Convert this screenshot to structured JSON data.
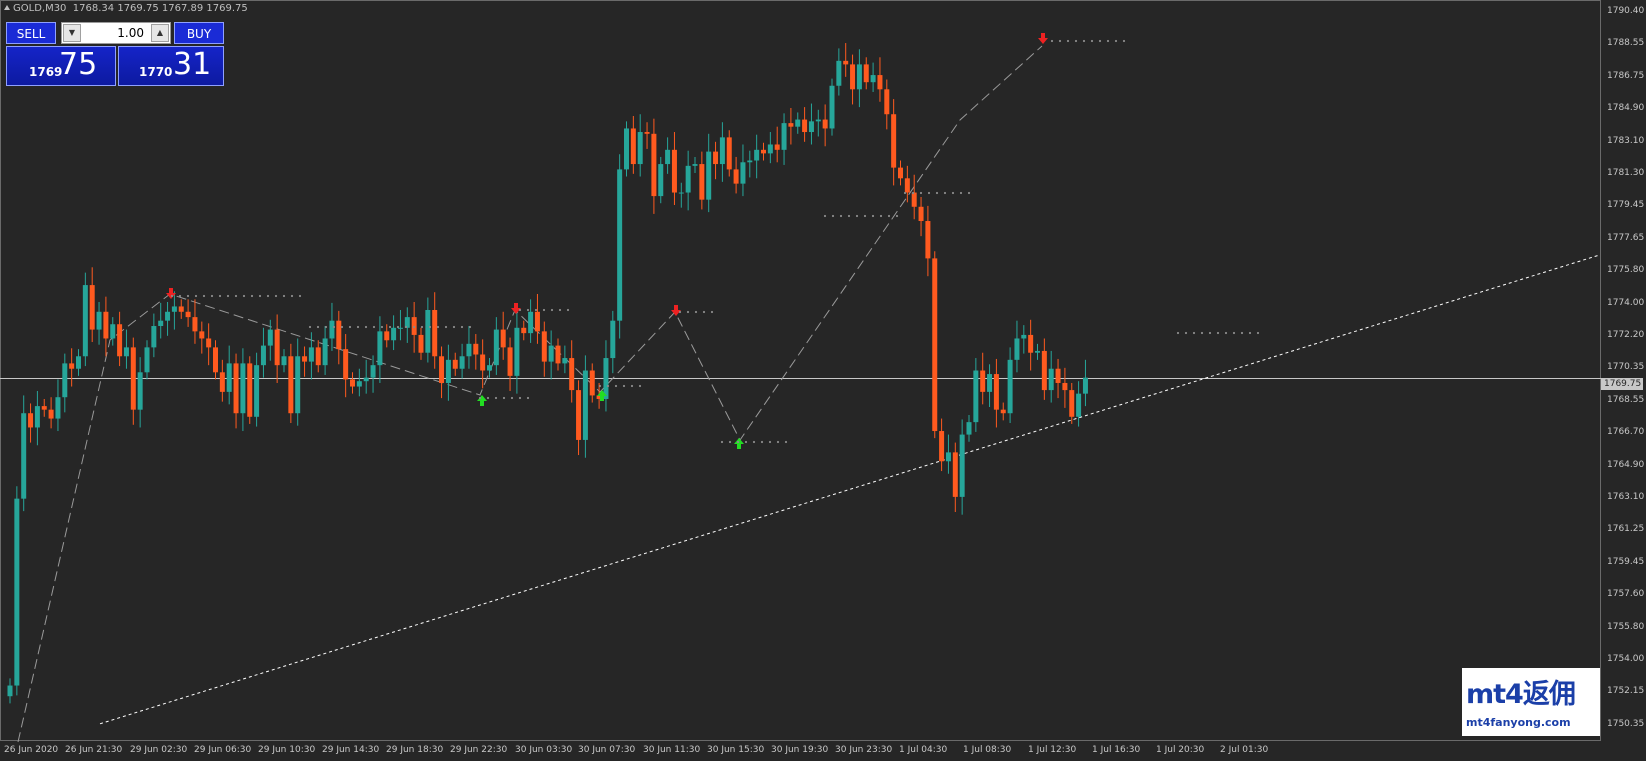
{
  "header": {
    "symbol_timeframe": "GOLD,M30",
    "ohlc": "1768.34 1769.75 1767.89 1769.75"
  },
  "trade_panel": {
    "sell_label": "SELL",
    "buy_label": "BUY",
    "lot_value": "1.00",
    "sell_price_prefix": "1769",
    "sell_price_big": "75",
    "buy_price_prefix": "1770",
    "buy_price_big": "31"
  },
  "price_axis": [
    "1790.40",
    "1788.55",
    "1786.75",
    "1784.90",
    "1783.10",
    "1781.30",
    "1779.45",
    "1777.65",
    "1775.80",
    "1774.00",
    "1772.20",
    "1770.35",
    "1768.55",
    "1766.70",
    "1764.90",
    "1763.10",
    "1761.25",
    "1759.45",
    "1757.60",
    "1755.80",
    "1754.00",
    "1752.15",
    "1750.35"
  ],
  "current_price": "1769.75",
  "time_axis": [
    "26 Jun 2020",
    "26 Jun 21:30",
    "29 Jun 02:30",
    "29 Jun 06:30",
    "29 Jun 10:30",
    "29 Jun 14:30",
    "29 Jun 18:30",
    "29 Jun 22:30",
    "30 Jun 03:30",
    "30 Jun 07:30",
    "30 Jun 11:30",
    "30 Jun 15:30",
    "30 Jun 19:30",
    "30 Jun 23:30",
    "1 Jul 04:30",
    "1 Jul 08:30",
    "1 Jul 12:30",
    "1 Jul 16:30",
    "1 Jul 20:30",
    "2 Jul 01:30"
  ],
  "logo": {
    "main": "mt4返佣",
    "sub": "mt4fanyong.com"
  },
  "colors": {
    "bull": "#26a69a",
    "bear": "#ff5a1f",
    "background": "#262626",
    "signal_up": "#22dd22",
    "signal_down": "#ee2222"
  },
  "chart_data": {
    "type": "candlestick",
    "symbol": "GOLD",
    "timeframe": "M30",
    "ylim": [
      1750.35,
      1790.4
    ],
    "current_price": 1769.75,
    "closes": [
      1752.5,
      1763.0,
      1767.8,
      1767.0,
      1768.2,
      1768.0,
      1767.5,
      1768.7,
      1770.6,
      1770.3,
      1771.0,
      1775.0,
      1772.5,
      1773.5,
      1772.0,
      1772.8,
      1771.0,
      1771.5,
      1768.0,
      1770.1,
      1771.5,
      1772.7,
      1773.0,
      1773.5,
      1773.8,
      1773.5,
      1773.2,
      1772.4,
      1772.0,
      1771.5,
      1770.1,
      1769.0,
      1770.6,
      1767.8,
      1770.6,
      1767.6,
      1770.5,
      1771.6,
      1772.5,
      1770.5,
      1771.0,
      1767.8,
      1771.0,
      1770.7,
      1771.5,
      1770.5,
      1772.0,
      1773.0,
      1771.4,
      1769.7,
      1769.3,
      1769.6,
      1769.8,
      1770.5,
      1772.4,
      1771.9,
      1772.6,
      1772.6,
      1773.2,
      1772.2,
      1771.2,
      1773.6,
      1771.0,
      1769.5,
      1770.8,
      1770.3,
      1771.0,
      1771.7,
      1771.1,
      1770.2,
      1770.5,
      1772.5,
      1771.5,
      1769.9,
      1772.6,
      1772.3,
      1773.5,
      1772.4,
      1770.7,
      1771.6,
      1770.6,
      1770.9,
      1769.1,
      1766.3,
      1770.2,
      1768.8,
      1768.6,
      1770.9,
      1773.0,
      1781.5,
      1783.8,
      1781.8,
      1783.6,
      1783.5,
      1780.0,
      1781.8,
      1782.6,
      1780.2,
      1780.2,
      1781.7,
      1781.8,
      1779.8,
      1782.5,
      1781.8,
      1783.3,
      1781.5,
      1780.7,
      1781.9,
      1782.0,
      1782.6,
      1782.4,
      1782.9,
      1782.6,
      1784.1,
      1783.9,
      1784.3,
      1783.6,
      1784.2,
      1784.3,
      1783.8,
      1786.2,
      1787.6,
      1787.4,
      1786.0,
      1787.4,
      1786.4,
      1786.8,
      1786.0,
      1784.6,
      1781.6,
      1781.0,
      1780.2,
      1779.4,
      1778.6,
      1776.5,
      1766.8,
      1765.1,
      1765.6,
      1763.1,
      1766.6,
      1767.3,
      1770.2,
      1769.0,
      1770.0,
      1768.0,
      1767.8,
      1770.8,
      1772.0,
      1772.2,
      1771.2,
      1771.3,
      1769.1,
      1770.3,
      1769.5,
      1769.1,
      1767.6,
      1768.9,
      1769.8
    ]
  }
}
